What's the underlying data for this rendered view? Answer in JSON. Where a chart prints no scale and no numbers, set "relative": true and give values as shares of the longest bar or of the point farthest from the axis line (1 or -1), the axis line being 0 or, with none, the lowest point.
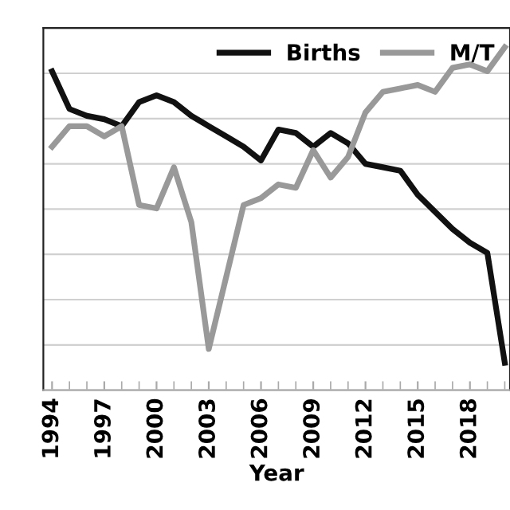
{
  "chart_data": {
    "type": "line",
    "xlabel": "Year",
    "relative": true,
    "x": [
      1994,
      1995,
      1996,
      1997,
      1998,
      1999,
      2000,
      2001,
      2002,
      2003,
      2004,
      2005,
      2006,
      2007,
      2008,
      2009,
      2010,
      2011,
      2012,
      2013,
      2014,
      2015,
      2016,
      2017,
      2018,
      2019,
      2020
    ],
    "xlim": [
      1993.5,
      2020.3
    ],
    "xticks": [
      1994,
      1997,
      2000,
      2003,
      2006,
      2009,
      2012,
      2015,
      2018
    ],
    "series": [
      {
        "name": "Births",
        "color": "#111111",
        "values": [
          0.93,
          0.82,
          0.8,
          0.79,
          0.77,
          0.84,
          0.86,
          0.84,
          0.8,
          0.77,
          0.74,
          0.71,
          0.67,
          0.76,
          0.75,
          0.71,
          0.75,
          0.72,
          0.66,
          0.65,
          0.64,
          0.57,
          0.52,
          0.47,
          0.43,
          0.4,
          0.08
        ]
      },
      {
        "name": "M/T",
        "color": "#999999",
        "values": [
          0.71,
          0.77,
          0.77,
          0.74,
          0.77,
          0.54,
          0.53,
          0.65,
          0.49,
          0.12,
          0.33,
          0.54,
          0.56,
          0.6,
          0.59,
          0.7,
          0.62,
          0.68,
          0.81,
          0.87,
          0.88,
          0.89,
          0.87,
          0.94,
          0.95,
          0.93,
          1.0
        ]
      }
    ],
    "grid": "y",
    "legend": "top right",
    "marker": "none",
    "line_style": "solid"
  }
}
